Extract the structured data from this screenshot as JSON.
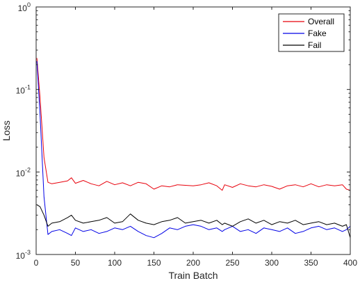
{
  "chart_data": {
    "type": "line",
    "title": "",
    "xlabel": "Train Batch",
    "ylabel": "Loss",
    "xlim": [
      0,
      400
    ],
    "ylim": [
      0.001,
      1
    ],
    "yscale": "log",
    "grid": false,
    "legend_position": "top-right",
    "x_ticks": [
      "0",
      "50",
      "100",
      "150",
      "200",
      "250",
      "300",
      "350",
      "400"
    ],
    "y_ticks": [
      {
        "base": "10",
        "exp": "-3"
      },
      {
        "base": "10",
        "exp": "-2"
      },
      {
        "base": "10",
        "exp": "-1"
      },
      {
        "base": "10",
        "exp": "0"
      }
    ],
    "x": [
      1,
      5,
      10,
      15,
      20,
      30,
      40,
      45,
      50,
      60,
      70,
      80,
      90,
      100,
      110,
      120,
      130,
      140,
      150,
      160,
      170,
      180,
      190,
      200,
      210,
      220,
      230,
      237,
      240,
      250,
      260,
      270,
      280,
      290,
      300,
      310,
      320,
      330,
      340,
      350,
      360,
      370,
      380,
      390,
      395,
      400
    ],
    "series": [
      {
        "name": "Overall",
        "color": "#e8000b",
        "values": [
          0.24,
          0.08,
          0.015,
          0.0075,
          0.0072,
          0.0075,
          0.0078,
          0.0085,
          0.0073,
          0.0079,
          0.0072,
          0.0068,
          0.0077,
          0.007,
          0.0074,
          0.0068,
          0.0075,
          0.0072,
          0.0062,
          0.0068,
          0.0066,
          0.007,
          0.0069,
          0.0068,
          0.007,
          0.0074,
          0.0068,
          0.006,
          0.007,
          0.0065,
          0.0072,
          0.0068,
          0.0066,
          0.007,
          0.0067,
          0.0062,
          0.0068,
          0.007,
          0.0066,
          0.0072,
          0.0066,
          0.007,
          0.0068,
          0.007,
          0.0062,
          0.006
        ]
      },
      {
        "name": "Fake",
        "color": "#0000e6",
        "values": [
          0.22,
          0.05,
          0.005,
          0.00175,
          0.0019,
          0.002,
          0.0018,
          0.0017,
          0.0021,
          0.0019,
          0.002,
          0.0018,
          0.0019,
          0.0021,
          0.002,
          0.0022,
          0.0019,
          0.0017,
          0.0016,
          0.0018,
          0.0021,
          0.002,
          0.0022,
          0.0023,
          0.0022,
          0.002,
          0.0021,
          0.0019,
          0.002,
          0.0022,
          0.0019,
          0.002,
          0.0018,
          0.0021,
          0.002,
          0.0019,
          0.0021,
          0.0018,
          0.0019,
          0.0021,
          0.0022,
          0.002,
          0.0021,
          0.0019,
          0.002,
          0.0022
        ]
      },
      {
        "name": "Fail",
        "color": "#000000",
        "values": [
          0.004,
          0.0038,
          0.003,
          0.0022,
          0.0024,
          0.0025,
          0.0028,
          0.003,
          0.0026,
          0.0024,
          0.0025,
          0.0026,
          0.0028,
          0.0024,
          0.0025,
          0.0031,
          0.0026,
          0.0024,
          0.0023,
          0.0025,
          0.0026,
          0.0028,
          0.0024,
          0.0025,
          0.0026,
          0.0024,
          0.0026,
          0.0023,
          0.0024,
          0.0022,
          0.0025,
          0.0027,
          0.0024,
          0.0026,
          0.0023,
          0.0025,
          0.0024,
          0.0026,
          0.0023,
          0.0024,
          0.0025,
          0.0023,
          0.0024,
          0.0022,
          0.0023,
          0.0016
        ]
      }
    ]
  }
}
